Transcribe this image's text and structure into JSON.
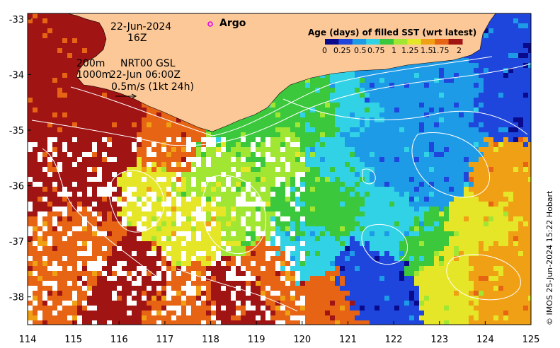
{
  "map": {
    "date": "22-Jun-2024",
    "hour": "16Z",
    "depth_200": "200m",
    "depth_1000": "1000m",
    "product": "NRT00 GSL",
    "product_time": "22-Jun 06:00Z",
    "scale_label": "0.5m/s (1kt 24h)",
    "argo_label": "Argo",
    "credit": "© IMOS 25-Jun-2024 15:22 Hobart"
  },
  "legend": {
    "title": "Age (days) of filled SST (wrt latest)",
    "ticks": [
      "0",
      "0.25",
      "0.5",
      "0.75",
      "1",
      "1.25",
      "1.5",
      "1.75",
      "2"
    ],
    "colors": [
      "#0a0a8c",
      "#1e46dc",
      "#1e9be6",
      "#32d2e6",
      "#3cc83c",
      "#a0e632",
      "#e6e628",
      "#f0a014",
      "#e66414",
      "#a01414"
    ]
  },
  "axes": {
    "x_ticks": [
      "114",
      "115",
      "116",
      "117",
      "118",
      "119",
      "120",
      "121",
      "122",
      "123",
      "124",
      "125"
    ],
    "y_ticks": [
      "-33",
      "-34",
      "-35",
      "-36",
      "-37",
      "-38"
    ]
  },
  "colors": {
    "land": "#fcc898",
    "missing": "#ffffff",
    "contour": "#ffffff",
    "argo_marker": "#e600e6"
  }
}
